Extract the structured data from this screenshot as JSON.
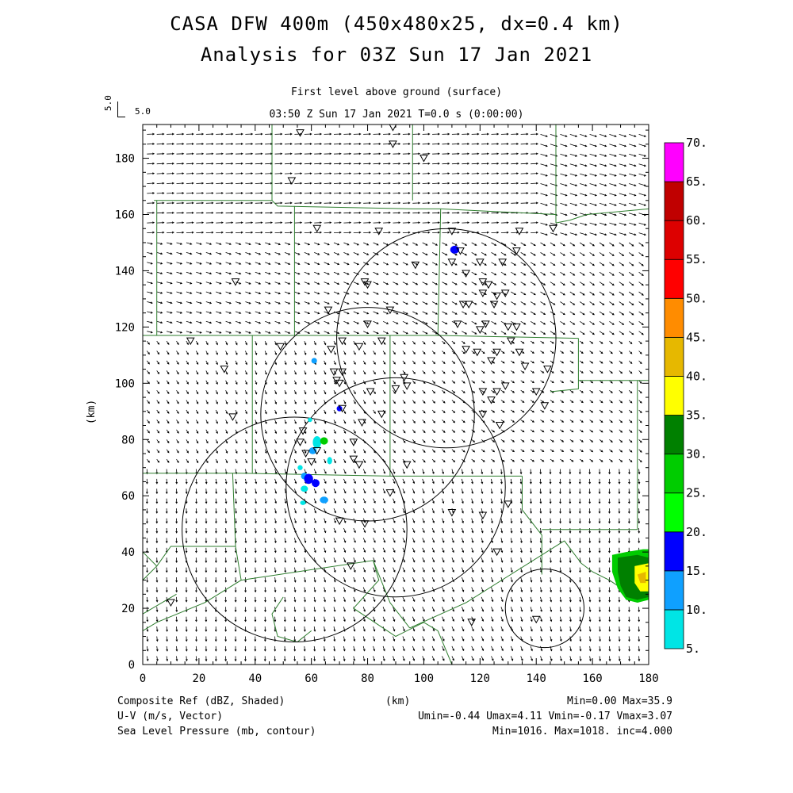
{
  "title": {
    "line1": "CASA DFW 400m (450x480x25, dx=0.4 km)",
    "line2": "Analysis for 03Z Sun 17 Jan 2021"
  },
  "subtitle": {
    "level": "First level above ground (surface)",
    "time": "03:50 Z Sun 17 Jan 2021    T=0.0 s (0:00:00)",
    "vector_ref_left": "5.0",
    "vector_ref_right": "5.0"
  },
  "axes": {
    "x_label": "(km)",
    "y_label": "(km)",
    "x_ticks": [
      "0",
      "20",
      "40",
      "60",
      "80",
      "100",
      "120",
      "140",
      "160",
      "180"
    ],
    "y_ticks": [
      "0",
      "20",
      "40",
      "60",
      "80",
      "100",
      "120",
      "140",
      "160",
      "180"
    ],
    "x_range": [
      0,
      180
    ],
    "y_range": [
      0,
      192
    ]
  },
  "colorbar": {
    "labels": [
      "5.",
      "10.",
      "15.",
      "20.",
      "25.",
      "30.",
      "35.",
      "40.",
      "45.",
      "50.",
      "55.",
      "60.",
      "65.",
      "70."
    ],
    "colors": [
      "#00e5e5",
      "#0fa0ff",
      "#0000ff",
      "#00ff00",
      "#00cc00",
      "#008000",
      "#ffff00",
      "#e6b800",
      "#ff8c00",
      "#ff0000",
      "#dd0000",
      "#c00000",
      "#ff00ff"
    ]
  },
  "footer": {
    "left1": "Composite Ref (dBZ, Shaded)",
    "left2": "U-V (m/s, Vector)",
    "left3": "Sea Level Pressure (mb, contour)",
    "center1": "(km)",
    "right1": "Min=0.00 Max=35.9",
    "right2": "Umin=-0.44 Umax=4.11 Vmin=-0.17 Vmax=3.07",
    "right3": "Min=1016. Max=1018. inc=4.000"
  },
  "map_data": {
    "radar_rings_km": [
      {
        "cx": 108,
        "cy": 116,
        "r": 39
      },
      {
        "cx": 80,
        "cy": 89,
        "r": 38
      },
      {
        "cx": 90,
        "cy": 63,
        "r": 39
      },
      {
        "cx": 54,
        "cy": 48,
        "r": 40
      },
      {
        "cx": 143,
        "cy": 20,
        "r": 14
      }
    ],
    "station_markers_km": [
      [
        56,
        189
      ],
      [
        89,
        191
      ],
      [
        89,
        185
      ],
      [
        100,
        180
      ],
      [
        53,
        172
      ],
      [
        62,
        155
      ],
      [
        84,
        154
      ],
      [
        110,
        154
      ],
      [
        134,
        154
      ],
      [
        146,
        155
      ],
      [
        113,
        147
      ],
      [
        133,
        147
      ],
      [
        120,
        143
      ],
      [
        128,
        143
      ],
      [
        97,
        142
      ],
      [
        110,
        143
      ],
      [
        115,
        139
      ],
      [
        79,
        136
      ],
      [
        80,
        135
      ],
      [
        121,
        136
      ],
      [
        123,
        135
      ],
      [
        121,
        132
      ],
      [
        126,
        131
      ],
      [
        129,
        132
      ],
      [
        114,
        128
      ],
      [
        116,
        128
      ],
      [
        33,
        136
      ],
      [
        66,
        126
      ],
      [
        88,
        126
      ],
      [
        125,
        128
      ],
      [
        80,
        121
      ],
      [
        112,
        121
      ],
      [
        120,
        119
      ],
      [
        122,
        121
      ],
      [
        130,
        120
      ],
      [
        133,
        120
      ],
      [
        71,
        115
      ],
      [
        85,
        115
      ],
      [
        77,
        113
      ],
      [
        131,
        115
      ],
      [
        17,
        115
      ],
      [
        49,
        113
      ],
      [
        67,
        112
      ],
      [
        119,
        111
      ],
      [
        115,
        112
      ],
      [
        126,
        111
      ],
      [
        134,
        111
      ],
      [
        124,
        108
      ],
      [
        136,
        106
      ],
      [
        29,
        105
      ],
      [
        68,
        104
      ],
      [
        71,
        104
      ],
      [
        69,
        101
      ],
      [
        70,
        100
      ],
      [
        93,
        102
      ],
      [
        144,
        105
      ],
      [
        81,
        97
      ],
      [
        90,
        98
      ],
      [
        94,
        99
      ],
      [
        121,
        97
      ],
      [
        126,
        97
      ],
      [
        129,
        99
      ],
      [
        140,
        97
      ],
      [
        124,
        94
      ],
      [
        143,
        92
      ],
      [
        71,
        91
      ],
      [
        85,
        89
      ],
      [
        32,
        88
      ],
      [
        78,
        86
      ],
      [
        121,
        89
      ],
      [
        127,
        85
      ],
      [
        57,
        83
      ],
      [
        56,
        79
      ],
      [
        75,
        79
      ],
      [
        62,
        76
      ],
      [
        58,
        75
      ],
      [
        75,
        73
      ],
      [
        94,
        71
      ],
      [
        60,
        72
      ],
      [
        77,
        71
      ],
      [
        88,
        61
      ],
      [
        110,
        54
      ],
      [
        130,
        57
      ],
      [
        121,
        53
      ],
      [
        70,
        51
      ],
      [
        79,
        50
      ],
      [
        74,
        35
      ],
      [
        126,
        40
      ],
      [
        10,
        22
      ],
      [
        117,
        15
      ],
      [
        140,
        16
      ]
    ],
    "reflectivity_cells_km": [
      {
        "x": 111.0,
        "y": 147.5,
        "rx": 1.6,
        "ry": 1.4,
        "c": "#0000ff"
      },
      {
        "x": 61.0,
        "y": 108.0,
        "rx": 1.0,
        "ry": 1.0,
        "c": "#0fa0ff"
      },
      {
        "x": 70.0,
        "y": 91.0,
        "rx": 1.0,
        "ry": 1.0,
        "c": "#0000ff"
      },
      {
        "x": 59.5,
        "y": 87.0,
        "rx": 0.8,
        "ry": 0.8,
        "c": "#00e5e5"
      },
      {
        "x": 62.0,
        "y": 79.0,
        "rx": 1.5,
        "ry": 2.2,
        "c": "#00e5e5"
      },
      {
        "x": 64.5,
        "y": 79.5,
        "rx": 1.4,
        "ry": 1.3,
        "c": "#00cc00"
      },
      {
        "x": 60.5,
        "y": 76.0,
        "rx": 1.4,
        "ry": 1.2,
        "c": "#0fa0ff"
      },
      {
        "x": 66.5,
        "y": 72.5,
        "rx": 0.9,
        "ry": 1.3,
        "c": "#00e5e5"
      },
      {
        "x": 56.0,
        "y": 70.0,
        "rx": 0.9,
        "ry": 0.9,
        "c": "#00e5e5"
      },
      {
        "x": 57.5,
        "y": 67.0,
        "rx": 1.2,
        "ry": 1.2,
        "c": "#0fa0ff"
      },
      {
        "x": 59.0,
        "y": 66.0,
        "rx": 1.6,
        "ry": 1.8,
        "c": "#0000ff"
      },
      {
        "x": 61.5,
        "y": 64.5,
        "rx": 1.4,
        "ry": 1.4,
        "c": "#0000ff"
      },
      {
        "x": 57.5,
        "y": 62.5,
        "rx": 1.3,
        "ry": 1.1,
        "c": "#00e5e5"
      },
      {
        "x": 64.5,
        "y": 58.5,
        "rx": 1.5,
        "ry": 1.2,
        "c": "#0fa0ff"
      },
      {
        "x": 57.0,
        "y": 57.5,
        "rx": 1.0,
        "ry": 0.8,
        "c": "#00e5e5"
      }
    ],
    "storm_cell_km": {
      "green": [
        [
          167,
          39
        ],
        [
          172,
          40
        ],
        [
          178,
          41
        ],
        [
          180,
          41
        ],
        [
          180,
          23
        ],
        [
          176,
          22
        ],
        [
          172,
          23
        ],
        [
          169,
          27
        ],
        [
          167,
          33
        ]
      ],
      "lightgreen": [
        [
          169,
          38
        ],
        [
          176,
          39
        ],
        [
          180,
          38
        ],
        [
          180,
          24
        ],
        [
          176,
          23
        ],
        [
          172,
          24
        ],
        [
          170,
          28
        ],
        [
          169,
          33
        ]
      ],
      "darkgreen": [
        [
          170,
          37
        ],
        [
          176,
          38
        ],
        [
          180,
          37
        ],
        [
          180,
          25
        ],
        [
          176,
          24
        ],
        [
          172,
          26
        ],
        [
          171,
          32
        ]
      ],
      "yellow": [
        [
          175,
          35
        ],
        [
          180,
          36
        ],
        [
          180,
          26
        ],
        [
          177,
          26
        ],
        [
          175,
          29
        ]
      ],
      "darkyellow": [
        [
          176,
          32
        ],
        [
          179,
          33
        ],
        [
          179,
          29
        ],
        [
          177,
          29
        ]
      ]
    },
    "boundaries_km": [
      [
        [
          46,
          192
        ],
        [
          46,
          165
        ]
      ],
      [
        [
          96,
          192
        ],
        [
          96,
          165
        ]
      ],
      [
        [
          147,
          192
        ],
        [
          147,
          157
        ]
      ],
      [
        [
          4,
          165
        ],
        [
          46,
          165
        ],
        [
          48,
          163
        ],
        [
          96,
          162
        ],
        [
          106,
          162
        ],
        [
          147,
          160
        ]
      ],
      [
        [
          147,
          157
        ],
        [
          152,
          158
        ],
        [
          158,
          160
        ],
        [
          180,
          162
        ]
      ],
      [
        [
          5,
          165
        ],
        [
          5,
          117
        ]
      ],
      [
        [
          106,
          162
        ],
        [
          105,
          117
        ]
      ],
      [
        [
          54,
          163
        ],
        [
          54,
          117
        ]
      ],
      [
        [
          0,
          117
        ],
        [
          54,
          117
        ],
        [
          105,
          117
        ],
        [
          155,
          116
        ]
      ],
      [
        [
          155,
          116
        ],
        [
          155,
          98
        ],
        [
          145,
          97
        ]
      ],
      [
        [
          155,
          101
        ],
        [
          180,
          101
        ]
      ],
      [
        [
          39,
          117
        ],
        [
          39,
          68
        ]
      ],
      [
        [
          88,
          117
        ],
        [
          88,
          67
        ]
      ],
      [
        [
          0,
          68
        ],
        [
          35,
          68
        ],
        [
          88,
          67
        ],
        [
          135,
          67
        ]
      ],
      [
        [
          135,
          67
        ],
        [
          135,
          55
        ],
        [
          142,
          46
        ],
        [
          142,
          32
        ]
      ],
      [
        [
          142,
          48
        ],
        [
          176,
          48
        ],
        [
          176,
          101
        ]
      ],
      [
        [
          32,
          68
        ],
        [
          33,
          42
        ],
        [
          10,
          42
        ],
        [
          5,
          35
        ]
      ],
      [
        [
          0,
          40
        ],
        [
          5,
          35
        ],
        [
          0,
          30
        ]
      ],
      [
        [
          33,
          42
        ],
        [
          35,
          30
        ],
        [
          22,
          22
        ],
        [
          5,
          15
        ],
        [
          0,
          12
        ]
      ],
      [
        [
          35,
          30
        ],
        [
          82,
          37
        ],
        [
          84,
          30
        ],
        [
          75,
          20
        ],
        [
          90,
          10
        ],
        [
          100,
          15
        ],
        [
          105,
          12
        ]
      ],
      [
        [
          82,
          37
        ],
        [
          88,
          22
        ],
        [
          95,
          13
        ]
      ],
      [
        [
          95,
          13
        ],
        [
          115,
          22
        ],
        [
          150,
          44
        ]
      ],
      [
        [
          150,
          44
        ],
        [
          156,
          36
        ],
        [
          160,
          33
        ],
        [
          166,
          30
        ],
        [
          172,
          26
        ]
      ],
      [
        [
          50,
          24
        ],
        [
          46,
          18
        ],
        [
          48,
          10
        ],
        [
          55,
          8
        ],
        [
          60,
          12
        ]
      ],
      [
        [
          105,
          12
        ],
        [
          110,
          0
        ]
      ],
      [
        [
          12,
          25
        ],
        [
          0,
          18
        ]
      ]
    ]
  }
}
